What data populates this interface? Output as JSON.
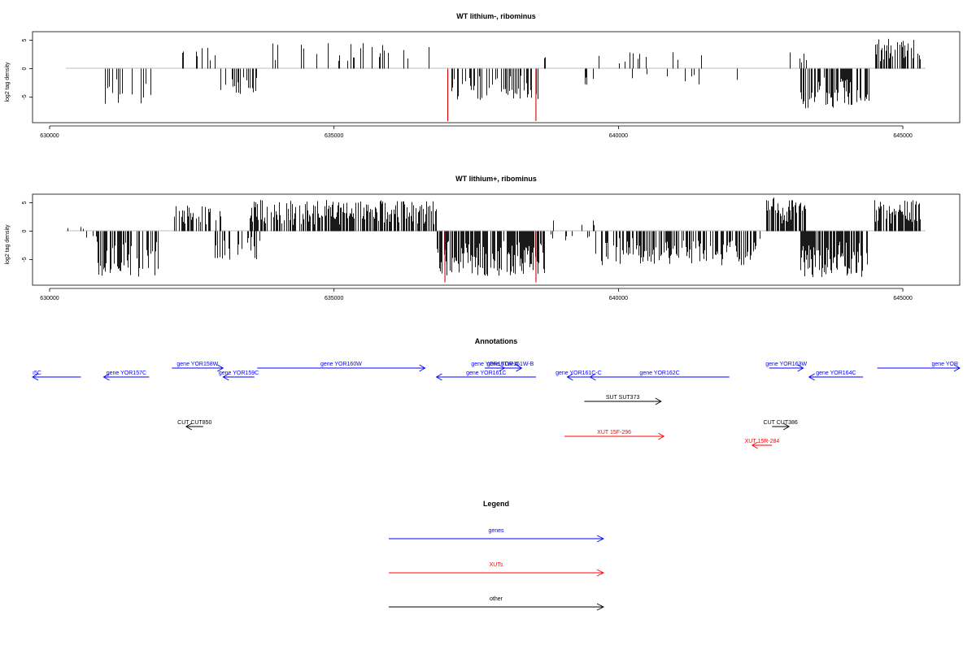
{
  "chart_data": [
    {
      "type": "bar",
      "title": "WT lithium-, ribominus",
      "xlabel": "",
      "ylabel": "log2 tag density",
      "xlim": [
        629700,
        646000
      ],
      "ylim": [
        -9.5,
        6.5
      ],
      "x_ticks": [
        630000,
        635000,
        640000,
        645000
      ],
      "y_ticks": [
        5,
        0,
        -5
      ],
      "segments": [
        {
          "start": 630500,
          "end": 630550,
          "min": -3.0,
          "max": 0,
          "density": 0.03
        },
        {
          "start": 630850,
          "end": 631800,
          "min": -6.5,
          "max": 0,
          "density": 0.22
        },
        {
          "start": 632100,
          "end": 632250,
          "min": 0,
          "max": 1.2,
          "density": 0.05
        },
        {
          "start": 632300,
          "end": 633000,
          "min": 0,
          "max": 3.8,
          "density": 0.14
        },
        {
          "start": 632950,
          "end": 633700,
          "min": -4.5,
          "max": 0,
          "density": 0.22
        },
        {
          "start": 633900,
          "end": 636700,
          "min": 0,
          "max": 4.5,
          "density": 0.13
        },
        {
          "start": 636800,
          "end": 636950,
          "min": -2.0,
          "max": 0,
          "density": 0.08
        },
        {
          "start": 637050,
          "end": 638600,
          "min": -5.5,
          "max": 0,
          "density": 0.28
        },
        {
          "start": 638700,
          "end": 638800,
          "min": 0,
          "max": 2.2,
          "density": 0.05
        },
        {
          "start": 638800,
          "end": 639700,
          "min": -2.0,
          "max": 0,
          "density": 0.04
        },
        {
          "start": 639000,
          "end": 639900,
          "min": 0,
          "max": 2.5,
          "density": 0.03
        },
        {
          "start": 639400,
          "end": 642400,
          "min": -3.0,
          "max": 0,
          "density": 0.07
        },
        {
          "start": 640000,
          "end": 642000,
          "min": 0,
          "max": 3.0,
          "density": 0.04
        },
        {
          "start": 642700,
          "end": 643300,
          "min": 0,
          "max": 3.5,
          "density": 0.1
        },
        {
          "start": 643200,
          "end": 644400,
          "min": -7.0,
          "max": 0,
          "density": 0.55
        },
        {
          "start": 644500,
          "end": 645300,
          "min": 0,
          "max": 5.5,
          "density": 0.45
        }
      ],
      "highlights": [
        {
          "x": 637000,
          "value": -9.2,
          "color": "#cc0000"
        },
        {
          "x": 638550,
          "value": -9.2,
          "color": "#cc0000"
        }
      ]
    },
    {
      "type": "bar",
      "title": "WT lithium+, ribominus",
      "xlabel": "",
      "ylabel": "log2 tag density",
      "xlim": [
        629700,
        646000
      ],
      "ylim": [
        -9.5,
        6.5
      ],
      "x_ticks": [
        630000,
        635000,
        640000,
        645000
      ],
      "y_ticks": [
        5,
        0,
        -5
      ],
      "segments": [
        {
          "start": 630300,
          "end": 630850,
          "min": -2.0,
          "max": 0.8,
          "density": 0.12
        },
        {
          "start": 630850,
          "end": 631900,
          "min": -8.0,
          "max": 0,
          "density": 0.55
        },
        {
          "start": 632100,
          "end": 633000,
          "min": 0,
          "max": 4.5,
          "density": 0.4
        },
        {
          "start": 632900,
          "end": 633700,
          "min": -5.0,
          "max": 0,
          "density": 0.45
        },
        {
          "start": 633500,
          "end": 636800,
          "min": 0,
          "max": 5.5,
          "density": 0.6
        },
        {
          "start": 636800,
          "end": 638700,
          "min": -8.0,
          "max": 0,
          "density": 0.8
        },
        {
          "start": 638700,
          "end": 639600,
          "min": -2.0,
          "max": 2.0,
          "density": 0.2
        },
        {
          "start": 639600,
          "end": 642500,
          "min": -6.0,
          "max": 0,
          "density": 0.55
        },
        {
          "start": 642600,
          "end": 643300,
          "min": 0,
          "max": 6.0,
          "density": 0.7
        },
        {
          "start": 643200,
          "end": 644400,
          "min": -8.5,
          "max": 0,
          "density": 0.75
        },
        {
          "start": 644500,
          "end": 645300,
          "min": 0,
          "max": 5.5,
          "density": 0.7
        }
      ],
      "highlights": [
        {
          "x": 636950,
          "value": -9.0,
          "color": "#cc0000"
        },
        {
          "x": 638550,
          "value": -9.0,
          "color": "#cc0000"
        }
      ]
    }
  ],
  "annotations": {
    "title": "Annotations",
    "items": [
      {
        "label": "ı5C",
        "start": 629700,
        "end": 630550,
        "dir": -1,
        "row": 1,
        "color": "#0000ff"
      },
      {
        "label": "gene YOR157C",
        "start": 630950,
        "end": 631750,
        "dir": -1,
        "row": 1,
        "color": "#0000ff"
      },
      {
        "label": "gene YOR158W",
        "start": 632150,
        "end": 633050,
        "dir": 1,
        "row": 0,
        "color": "#0000ff"
      },
      {
        "label": "gene YOR159C",
        "start": 633050,
        "end": 633600,
        "dir": -1,
        "row": 1,
        "color": "#0000ff"
      },
      {
        "label": "gene YOR160W",
        "start": 633650,
        "end": 636600,
        "dir": 1,
        "row": 0,
        "color": "#0000ff"
      },
      {
        "label": "gene YOR161W-A",
        "start": 637650,
        "end": 638000,
        "dir": 1,
        "row": 0,
        "color": "#0000ff"
      },
      {
        "label": "gene YOR161W-B",
        "start": 637900,
        "end": 638300,
        "dir": 1,
        "row": 0,
        "color": "#0000ff"
      },
      {
        "label": "gene YOR161C",
        "start": 636800,
        "end": 638550,
        "dir": -1,
        "row": 1,
        "color": "#0000ff"
      },
      {
        "label": "gene YOR161C-C",
        "start": 639100,
        "end": 639500,
        "dir": -1,
        "row": 1,
        "color": "#0000ff"
      },
      {
        "label": "gene YOR162C",
        "start": 639500,
        "end": 641950,
        "dir": -1,
        "row": 1,
        "color": "#0000ff"
      },
      {
        "label": "gene YOR163W",
        "start": 642650,
        "end": 643250,
        "dir": 1,
        "row": 0,
        "color": "#0000ff"
      },
      {
        "label": "gene YOR164C",
        "start": 643350,
        "end": 644300,
        "dir": -1,
        "row": 1,
        "color": "#0000ff"
      },
      {
        "label": "gene YOR",
        "start": 644550,
        "end": 646000,
        "dir": 1,
        "row": 0,
        "color": "#0000ff"
      },
      {
        "label": "SUT SUT373",
        "start": 639400,
        "end": 640750,
        "dir": 1,
        "row": 2,
        "color": "#000000"
      },
      {
        "label": "CUT CUT850",
        "start": 632400,
        "end": 632700,
        "dir": -1,
        "row": 3,
        "color": "#000000"
      },
      {
        "label": "CUT CUT386",
        "start": 642700,
        "end": 643000,
        "dir": 1,
        "row": 3,
        "color": "#000000"
      },
      {
        "label": "XUT 15F-296",
        "start": 639050,
        "end": 640800,
        "dir": 1,
        "row": 4,
        "color": "#ff0000"
      },
      {
        "label": "XUT 15R-284",
        "start": 642350,
        "end": 642700,
        "dir": -1,
        "row": 5,
        "color": "#ff0000"
      }
    ]
  },
  "legend": {
    "title": "Legend",
    "entries": [
      {
        "label": "genes",
        "color": "#0000ff"
      },
      {
        "label": "XUTs",
        "color": "#ff0000"
      },
      {
        "label": "other",
        "color": "#000000"
      }
    ]
  }
}
